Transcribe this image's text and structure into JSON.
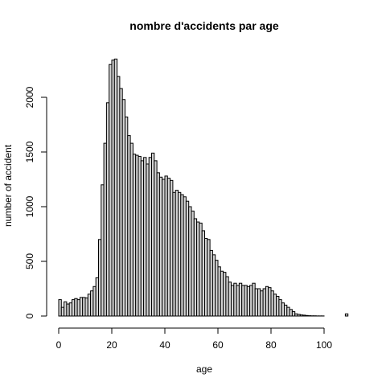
{
  "chart_data": {
    "type": "bar",
    "title": "nombre d'accidents par age",
    "xlabel": "age",
    "ylabel": "number of accident",
    "bin_width": 1,
    "x_start": 0,
    "xlim": [
      0,
      109
    ],
    "ylim": [
      0,
      2360
    ],
    "x_ticks": [
      0,
      20,
      40,
      60,
      80,
      100
    ],
    "y_ticks": [
      0,
      500,
      1000,
      1500,
      2000
    ],
    "grid": false,
    "values": [
      150,
      80,
      130,
      110,
      120,
      150,
      160,
      150,
      170,
      170,
      165,
      200,
      230,
      270,
      350,
      700,
      1200,
      1580,
      1950,
      2300,
      2340,
      2350,
      2190,
      2080,
      1980,
      1820,
      1650,
      1580,
      1480,
      1470,
      1460,
      1420,
      1450,
      1390,
      1450,
      1490,
      1420,
      1310,
      1270,
      1250,
      1280,
      1260,
      1240,
      1130,
      1150,
      1130,
      1110,
      1090,
      1050,
      1000,
      960,
      890,
      860,
      850,
      780,
      710,
      700,
      600,
      560,
      510,
      450,
      410,
      400,
      360,
      310,
      280,
      300,
      280,
      300,
      280,
      280,
      270,
      280,
      300,
      250,
      250,
      230,
      250,
      270,
      260,
      230,
      200,
      180,
      150,
      120,
      100,
      80,
      60,
      40,
      20,
      15,
      10,
      8,
      5,
      3,
      2,
      2,
      1,
      1,
      1,
      0,
      0,
      0,
      0,
      0,
      0,
      0,
      0,
      20
    ]
  }
}
